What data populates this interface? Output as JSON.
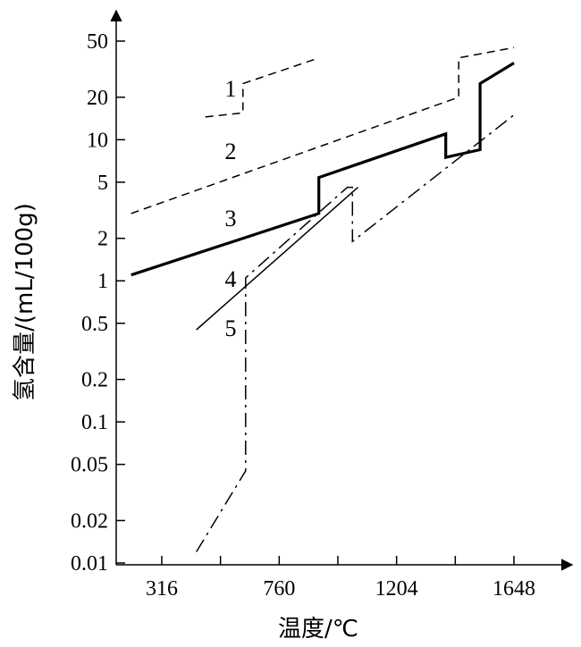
{
  "chart_data": {
    "type": "line",
    "xlabel": "温度/℃",
    "ylabel": "氢含量/(mL/100g)",
    "xscale": "linear",
    "yscale": "log",
    "xlim": [
      200,
      1800
    ],
    "ylim": [
      0.01,
      100
    ],
    "xticks": [
      "316",
      "760",
      "1204",
      "1648"
    ],
    "yticks": [
      "0.01",
      "0.02",
      "0.05",
      "0.1",
      "0.2",
      "0.5",
      "1",
      "2",
      "5",
      "10",
      "20",
      "50"
    ],
    "series": [
      {
        "name": "1",
        "style": "dashed",
        "width": "thin",
        "points": [
          [
            481,
            14.5
          ],
          [
            623,
            15.5
          ],
          [
            623,
            25
          ],
          [
            911,
            38
          ]
        ]
      },
      {
        "name": "2",
        "style": "dashed",
        "width": "thin",
        "points": [
          [
            200,
            3.0
          ],
          [
            1439,
            20
          ],
          [
            1439,
            38
          ],
          [
            1648,
            45
          ]
        ]
      },
      {
        "name": "3",
        "style": "solid",
        "width": "thick",
        "points": [
          [
            200,
            1.1
          ],
          [
            910,
            3.0
          ],
          [
            910,
            5.4
          ],
          [
            1390,
            11
          ],
          [
            1390,
            7.5
          ],
          [
            1520,
            8.5
          ],
          [
            1520,
            25
          ],
          [
            1648,
            35
          ]
        ]
      },
      {
        "name": "4",
        "style": "dash-dot",
        "width": "thin",
        "points": [
          [
            447,
            0.012
          ],
          [
            633,
            0.045
          ],
          [
            633,
            1.05
          ],
          [
            1018,
            4.6
          ],
          [
            1037,
            4.6
          ],
          [
            1037,
            1.9
          ],
          [
            1648,
            15
          ]
        ]
      },
      {
        "name": "5",
        "style": "solid",
        "width": "thin",
        "points": [
          [
            447,
            0.45
          ],
          [
            1058,
            4.6
          ]
        ]
      }
    ]
  }
}
